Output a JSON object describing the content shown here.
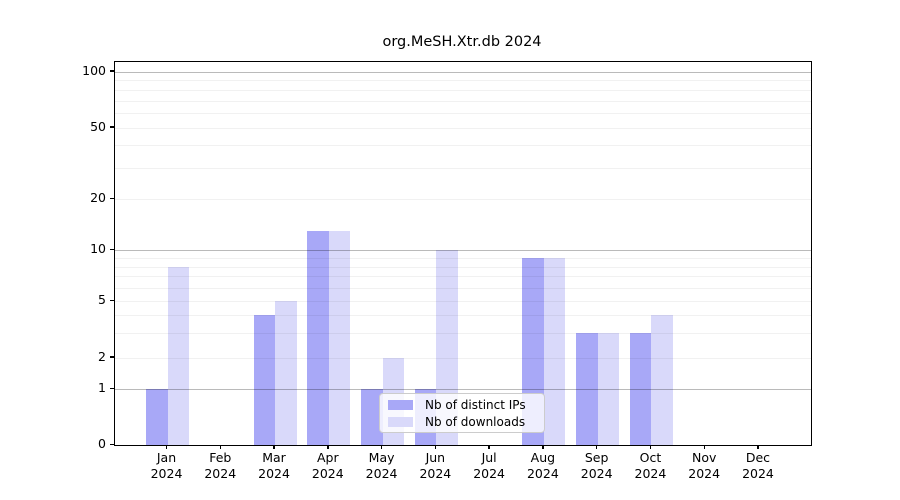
{
  "title": "org.MeSH.Xtr.db 2024",
  "colors": {
    "distinct_ips": "#a8a8f7",
    "downloads": "#d9d9fa",
    "legend_border": "#cccccc"
  },
  "y_axis": {
    "tick_labels": [
      "100",
      "50",
      "20",
      "10",
      "5",
      "2",
      "1",
      "0"
    ]
  },
  "x_axis": {
    "year": "2024",
    "months": [
      "Jan",
      "Feb",
      "Mar",
      "Apr",
      "May",
      "Jun",
      "Jul",
      "Aug",
      "Sep",
      "Oct",
      "Nov",
      "Dec"
    ]
  },
  "legend": {
    "items": [
      {
        "label": "Nb of distinct IPs",
        "color": "#a8a8f7"
      },
      {
        "label": "Nb of downloads",
        "color": "#d9d9fa"
      }
    ]
  },
  "chart_data": {
    "type": "bar",
    "title": "org.MeSH.Xtr.db 2024",
    "categories": [
      "Jan 2024",
      "Feb 2024",
      "Mar 2024",
      "Apr 2024",
      "May 2024",
      "Jun 2024",
      "Jul 2024",
      "Aug 2024",
      "Sep 2024",
      "Oct 2024",
      "Nov 2024",
      "Dec 2024"
    ],
    "series": [
      {
        "name": "Nb of distinct IPs",
        "color": "#a8a8f7",
        "values": [
          1,
          0,
          4,
          13,
          1,
          1,
          0,
          9,
          3,
          3,
          0,
          0
        ]
      },
      {
        "name": "Nb of downloads",
        "color": "#d9d9fa",
        "values": [
          8,
          0,
          5,
          13,
          2,
          10,
          0,
          9,
          3,
          4,
          0,
          0
        ]
      }
    ],
    "xlabel": "",
    "ylabel": "",
    "y_scale": "log-like",
    "y_ticks": [
      0,
      1,
      2,
      5,
      10,
      20,
      50,
      100
    ],
    "ylim": [
      0,
      110
    ],
    "grid": "horizontal",
    "legend_position": "lower center"
  }
}
